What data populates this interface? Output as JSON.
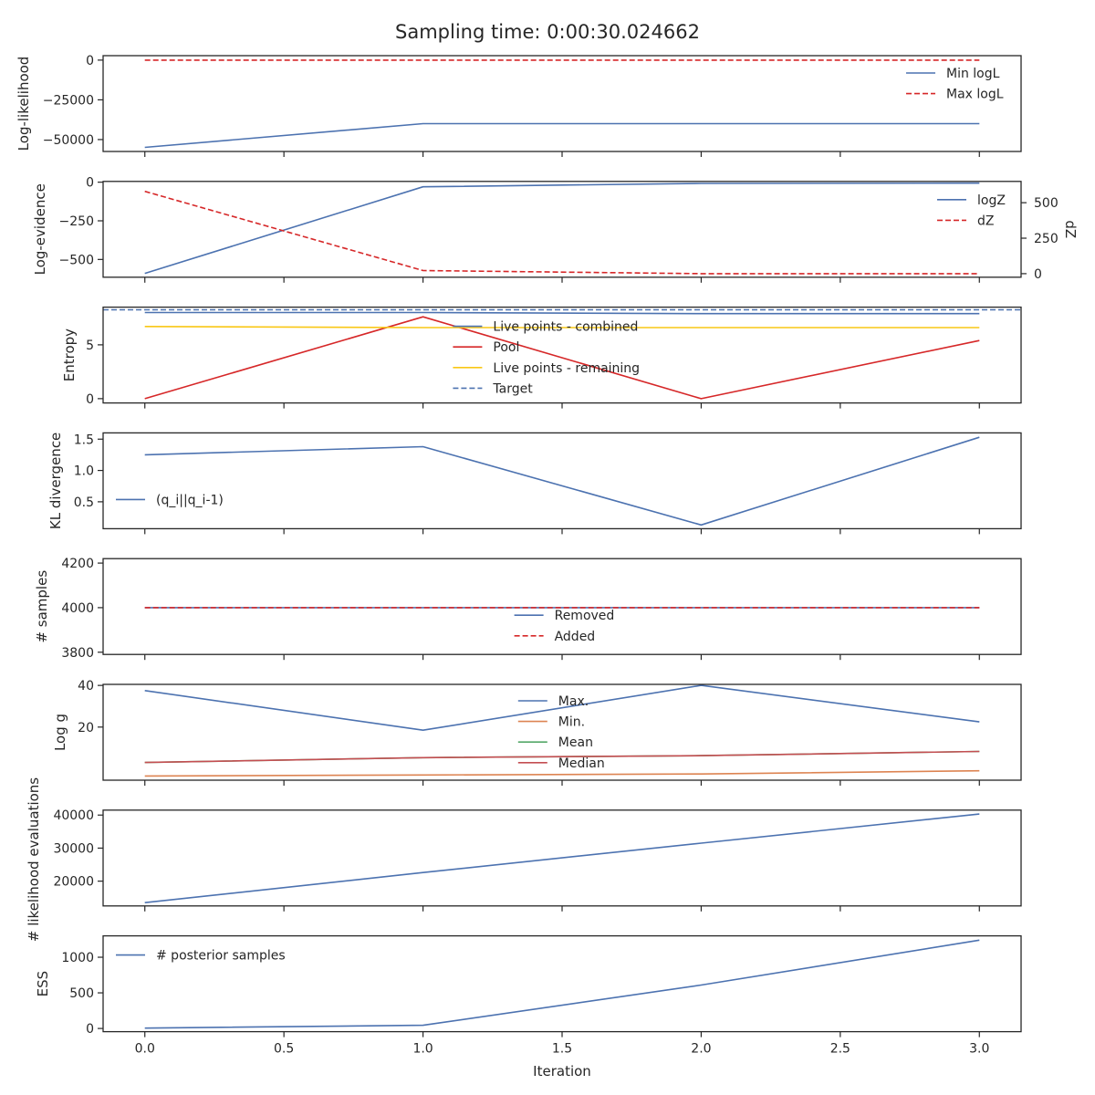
{
  "title": "Sampling time: 0:00:30.024662",
  "xlabel": "Iteration",
  "colors": {
    "blue": "#4c72b0",
    "red": "#d62728",
    "yellow": "#f9c715",
    "orange": "#dd8452",
    "green": "#55a868",
    "darkred": "#c44e52",
    "axis": "#262626"
  },
  "chart_data": [
    {
      "type": "line",
      "ylabel": "Log-likelihood",
      "x": [
        0,
        1,
        2,
        3
      ],
      "ylim": [
        -57500,
        2800
      ],
      "yticks": [
        0,
        -25000,
        -50000
      ],
      "ytick_labels": [
        "0",
        "−25000",
        "−50000"
      ],
      "legend": "right",
      "series": [
        {
          "name": "Min logL",
          "values": [
            -54900,
            -40000,
            -40000,
            -40000
          ],
          "color": "#4c72b0",
          "dash": false
        },
        {
          "name": "Max logL",
          "values": [
            0,
            0,
            0,
            0
          ],
          "color": "#d62728",
          "dash": true
        }
      ]
    },
    {
      "type": "line",
      "ylabel": "Log-evidence",
      "ylabel_right": "dZ",
      "x": [
        0,
        1,
        2,
        3
      ],
      "ylim": [
        -615,
        5
      ],
      "yticks": [
        0,
        -250,
        -500
      ],
      "ytick_labels": [
        "0",
        "−250",
        "−500"
      ],
      "ylim_right": [
        -25,
        650
      ],
      "yticks_right": [
        0,
        250,
        500
      ],
      "ytick_labels_right": [
        "0",
        "250",
        "500"
      ],
      "legend": "right",
      "series": [
        {
          "name": "logZ",
          "values": [
            -590,
            -30,
            -8,
            -6
          ],
          "color": "#4c72b0",
          "dash": false,
          "axis": "left"
        },
        {
          "name": "dZ",
          "values": [
            580,
            22,
            0,
            0
          ],
          "color": "#d62728",
          "dash": true,
          "axis": "right"
        }
      ]
    },
    {
      "type": "line",
      "ylabel": "Entropy",
      "x": [
        0,
        1,
        2,
        3
      ],
      "ylim": [
        -0.4,
        8.5
      ],
      "yticks": [
        0,
        5
      ],
      "ytick_labels": [
        "0",
        "5"
      ],
      "legend": "center",
      "series": [
        {
          "name": "Live points - combined",
          "values": [
            8.0,
            8.0,
            7.9,
            7.9
          ],
          "color": "#4c72b0",
          "dash": false
        },
        {
          "name": "Pool",
          "values": [
            0,
            7.6,
            0,
            5.4
          ],
          "color": "#d62728",
          "dash": false
        },
        {
          "name": "Live points - remaining",
          "values": [
            6.7,
            6.6,
            6.6,
            6.6
          ],
          "color": "#f9c715",
          "dash": false
        },
        {
          "name": "Target",
          "values": [
            8.25,
            8.25,
            8.25,
            8.25
          ],
          "color": "#4c72b0",
          "dash": true,
          "hline": true
        }
      ]
    },
    {
      "type": "line",
      "ylabel": "KL divergence",
      "x": [
        0,
        1,
        2,
        3
      ],
      "ylim": [
        0.07,
        1.6
      ],
      "yticks": [
        1.5,
        1.0,
        0.5
      ],
      "ytick_labels": [
        "1.5",
        "1.0",
        "0.5"
      ],
      "legend": "left",
      "series": [
        {
          "name": "(q_i||q_i-1)",
          "values": [
            1.25,
            1.38,
            0.13,
            1.53
          ],
          "color": "#4c72b0",
          "dash": false
        }
      ]
    },
    {
      "type": "line",
      "ylabel": "# samples",
      "x": [
        0,
        1,
        2,
        3
      ],
      "ylim": [
        3790,
        4220
      ],
      "yticks": [
        4200,
        4000,
        3800
      ],
      "ytick_labels": [
        "4200",
        "4000",
        "3800"
      ],
      "legend": "center",
      "series": [
        {
          "name": "Removed",
          "values": [
            4000,
            4000,
            4000,
            4000
          ],
          "color": "#4c72b0",
          "dash": false
        },
        {
          "name": "Added",
          "values": [
            4000,
            4000,
            4000,
            4000
          ],
          "color": "#d62728",
          "dash": true
        }
      ]
    },
    {
      "type": "line",
      "ylabel": "Log g",
      "x": [
        0,
        1,
        2,
        3
      ],
      "ylim": [
        -5.5,
        40.5
      ],
      "yticks": [
        40,
        20
      ],
      "ytick_labels": [
        "40",
        "20"
      ],
      "legend": "center",
      "series": [
        {
          "name": "Max.",
          "values": [
            37.5,
            18.5,
            40,
            22.5
          ],
          "color": "#4c72b0",
          "dash": false
        },
        {
          "name": "Min.",
          "values": [
            -3.5,
            -3.0,
            -2.5,
            -1.0
          ],
          "color": "#dd8452",
          "dash": false
        },
        {
          "name": "Mean",
          "values": [
            3.0,
            5.3,
            6.3,
            8.3
          ],
          "color": "#55a868",
          "dash": false
        },
        {
          "name": "Median",
          "values": [
            3.0,
            5.3,
            6.3,
            8.3
          ],
          "color": "#c44e52",
          "dash": false
        }
      ]
    },
    {
      "type": "line",
      "ylabel": "# likelihood evaluations",
      "x": [
        0,
        1,
        2,
        3
      ],
      "ylim": [
        12500,
        41500
      ],
      "yticks": [
        40000,
        30000,
        20000
      ],
      "ytick_labels": [
        "40000",
        "30000",
        "20000"
      ],
      "legend": "none",
      "series": [
        {
          "name": "",
          "values": [
            13500,
            22600,
            31500,
            40300
          ],
          "color": "#4c72b0",
          "dash": false
        }
      ]
    },
    {
      "type": "line",
      "ylabel": "ESS",
      "x": [
        0,
        1,
        2,
        3
      ],
      "ylim": [
        -45,
        1300
      ],
      "yticks": [
        1000,
        500,
        0
      ],
      "ytick_labels": [
        "1000",
        "500",
        "0"
      ],
      "legend": "left",
      "series": [
        {
          "name": "# posterior samples",
          "values": [
            5,
            45,
            610,
            1240
          ],
          "color": "#4c72b0",
          "dash": false
        }
      ]
    }
  ],
  "xaxis": {
    "xlim": [
      -0.15,
      3.15
    ],
    "ticks": [
      0,
      0.5,
      1,
      1.5,
      2,
      2.5,
      3
    ],
    "tick_labels": [
      "0.0",
      "0.5",
      "1.0",
      "1.5",
      "2.0",
      "2.5",
      "3.0"
    ]
  }
}
